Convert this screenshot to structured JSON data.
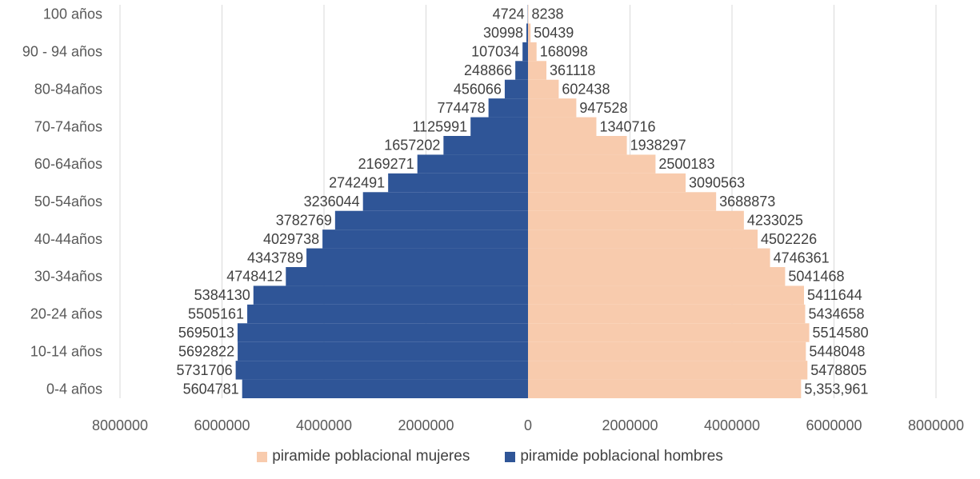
{
  "chart_data": {
    "type": "bar",
    "orientation": "horizontal",
    "categories": [
      "0-4 años",
      "",
      "10-14 años",
      "",
      "20-24 años",
      "",
      "30-34años",
      "",
      "40-44años",
      "",
      "50-54años",
      "",
      "60-64años",
      "",
      "70-74años",
      "",
      "80-84años",
      "",
      "90 - 94 años",
      "",
      "100 años"
    ],
    "series": [
      {
        "name": "piramide poblacional  mujeres",
        "color": "#f8cbad",
        "values": [
          5353961,
          5478805,
          5448048,
          5514580,
          5434658,
          5411644,
          5041468,
          4746361,
          4502226,
          4233025,
          3688873,
          3090563,
          2500183,
          1938297,
          1340716,
          947528,
          602438,
          361118,
          168098,
          50439,
          8238
        ],
        "labels": [
          "5,353,961",
          "5478805",
          "5448048",
          "5514580",
          "5434658",
          "5411644",
          "5041468",
          "4746361",
          "4502226",
          "4233025",
          "3688873",
          "3090563",
          "2500183",
          "1938297",
          "1340716",
          "947528",
          "602438",
          "361118",
          "168098",
          "50439",
          "8238"
        ]
      },
      {
        "name": "piramide poblacional  hombres",
        "color": "#2f5597",
        "values": [
          -5604781,
          -5731706,
          -5692822,
          -5695013,
          -5505161,
          -5384130,
          -4748412,
          -4343789,
          -4029738,
          -3782769,
          -3236044,
          -2742491,
          -2169271,
          -1657202,
          -1125991,
          -774478,
          -456066,
          -248866,
          -107034,
          -30998,
          -4724
        ],
        "labels": [
          "5604781",
          "5731706",
          "5692822",
          "5695013",
          "5505161",
          "5384130",
          "4748412",
          "4343789",
          "4029738",
          "3782769",
          "3236044",
          "2742491",
          "2169271",
          "1657202",
          "1125991",
          "774478",
          "456066",
          "248866",
          "107034",
          "30998",
          "4724"
        ]
      }
    ],
    "xlim": [
      -8000000,
      8000000
    ],
    "xticks": [
      -8000000,
      -6000000,
      -4000000,
      -2000000,
      0,
      2000000,
      4000000,
      6000000,
      8000000
    ],
    "xtick_labels": [
      "8000000",
      "6000000",
      "4000000",
      "2000000",
      "0",
      "2000000",
      "4000000",
      "6000000",
      "8000000"
    ],
    "grid": "vertical",
    "legend": "bottom",
    "title": "",
    "xlabel": "",
    "ylabel": ""
  }
}
